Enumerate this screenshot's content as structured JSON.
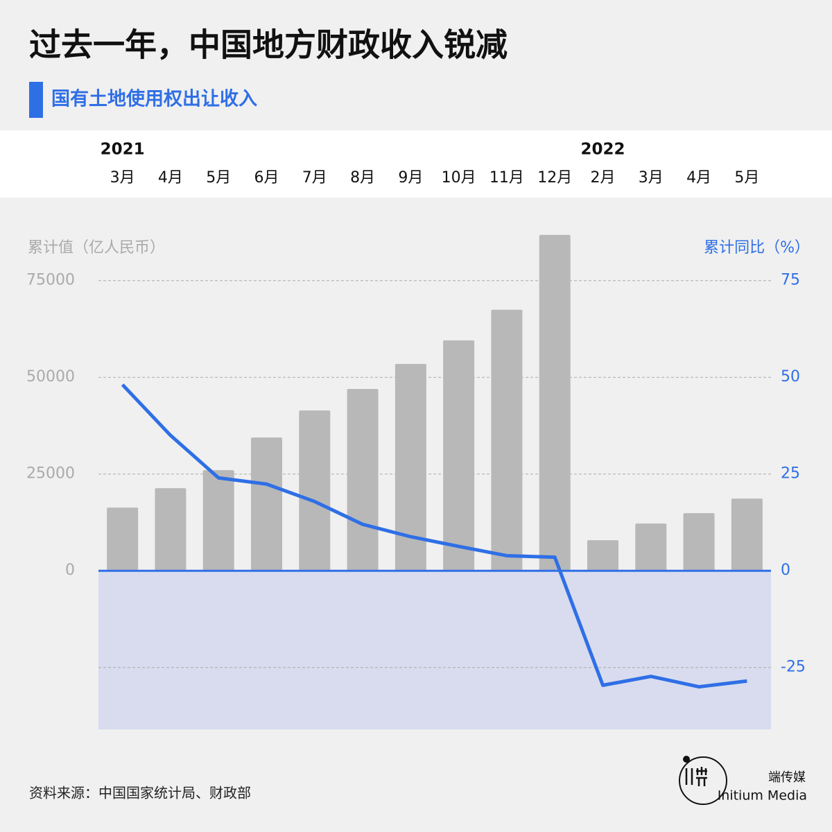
{
  "chart_data": {
    "type": "bar",
    "title": "过去一年，中国地方财政收入锐减",
    "subtitle": "国有土地使用权出让收入",
    "year_groups": [
      {
        "label": "2021",
        "start": 0
      },
      {
        "label": "2022",
        "start": 10
      }
    ],
    "categories": [
      "3月",
      "4月",
      "5月",
      "6月",
      "7月",
      "8月",
      "9月",
      "10月",
      "11月",
      "12月",
      "2月",
      "3月",
      "4月",
      "5月"
    ],
    "y_label": "累计值（亿人民币）",
    "y2_label": "累计同比（%）",
    "series": [
      {
        "name": "累计值",
        "type": "bar",
        "color": "#b8b8b8",
        "values": [
          16330,
          21350,
          26010,
          34450,
          41440,
          47000,
          53460,
          59560,
          67460,
          86830,
          7890,
          12200,
          14890,
          18660
        ]
      },
      {
        "name": "累计同比",
        "type": "line",
        "axis": "y2",
        "color": "#2f6fe6",
        "values": [
          48.1,
          35.0,
          24.0,
          22.4,
          17.9,
          12.0,
          8.8,
          6.3,
          3.9,
          3.5,
          -29.6,
          -27.3,
          -30.0,
          -28.5
        ]
      }
    ],
    "ylim": [
      -41000,
      90000
    ],
    "yticks": [
      0,
      25000,
      50000,
      75000
    ],
    "y2lim": [
      -41,
      90
    ],
    "y2ticks": [
      -25,
      0,
      25,
      50,
      75
    ],
    "grid": true,
    "negative_fill": "#d8dcee",
    "source": "资料来源：中国国家统计局、财政部",
    "brand": {
      "name_zh": "端传媒",
      "name_en": "Initium Media"
    }
  }
}
